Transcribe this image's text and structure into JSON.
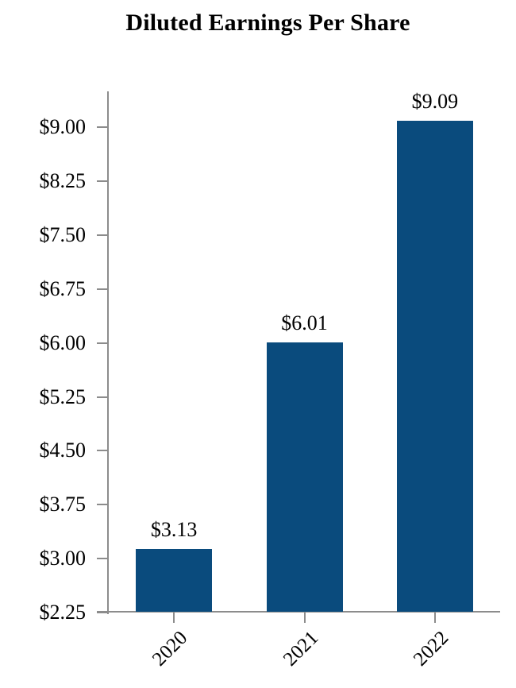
{
  "chart_data": {
    "type": "bar",
    "title": "Diluted Earnings Per Share",
    "categories": [
      "2020",
      "2021",
      "2022"
    ],
    "values": [
      3.13,
      6.01,
      9.09
    ],
    "value_labels": [
      "$3.13",
      "$6.01",
      "$9.09"
    ],
    "xlabel": "",
    "ylabel": "",
    "ylim": [
      2.25,
      9.5
    ],
    "ytick_values": [
      2.25,
      3.0,
      3.75,
      4.5,
      5.25,
      6.0,
      6.75,
      7.5,
      8.25,
      9.0
    ],
    "ytick_labels": [
      "$2.25",
      "$3.00",
      "$3.75",
      "$4.50",
      "$5.25",
      "$6.00",
      "$6.75",
      "$7.50",
      "$8.25",
      "$9.00"
    ],
    "grid": false,
    "legend": null,
    "colors": {
      "bar": "#0a4b7d",
      "axis": "#8c8c8c",
      "text": "#000000",
      "background": "#ffffff"
    }
  }
}
